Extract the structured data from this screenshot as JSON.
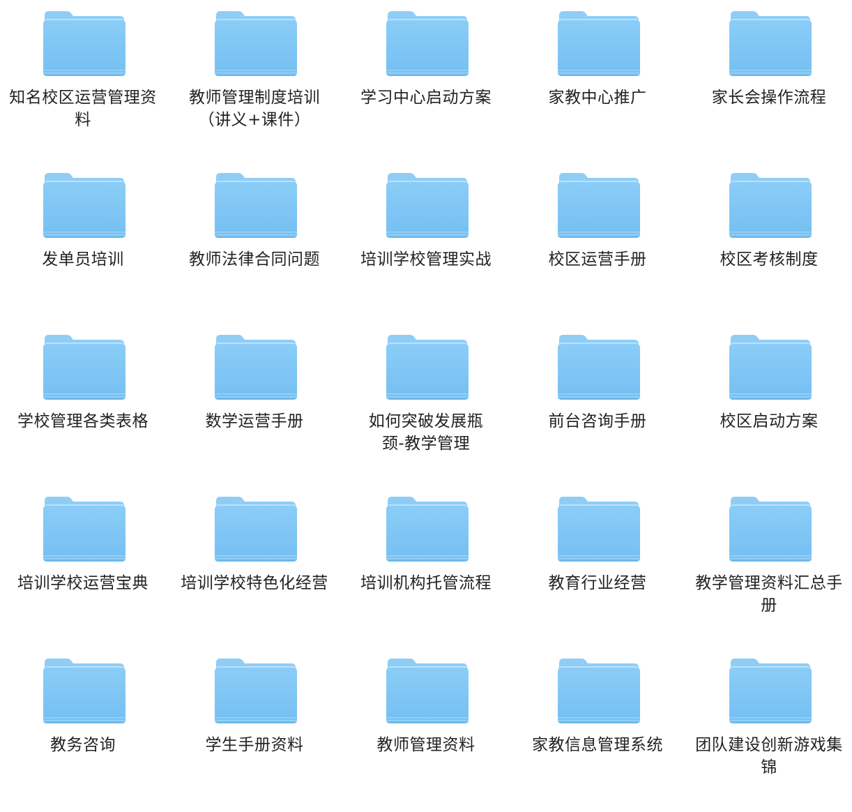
{
  "window": {
    "view": "icon-grid"
  },
  "folder_icon": {
    "name": "folder-icon",
    "tab_color": "#8fcdf7",
    "body_top_color": "#8bcdf7",
    "body_bottom_color": "#74bff2",
    "edge_color": "#62ace0"
  },
  "folders": [
    {
      "label": "知名校区运营管理资料"
    },
    {
      "label": "教师管理制度培训（讲义+课件）"
    },
    {
      "label": "学习中心启动方案"
    },
    {
      "label": "家教中心推广"
    },
    {
      "label": "家长会操作流程"
    },
    {
      "label": "发单员培训"
    },
    {
      "label": "教师法律合同问题"
    },
    {
      "label": "培训学校管理实战"
    },
    {
      "label": "校区运营手册"
    },
    {
      "label": "校区考核制度"
    },
    {
      "label": "学校管理各类表格"
    },
    {
      "label": "数学运营手册"
    },
    {
      "label": "如何突破发展瓶颈-教学管理"
    },
    {
      "label": "前台咨询手册"
    },
    {
      "label": "校区启动方案"
    },
    {
      "label": "培训学校运营宝典"
    },
    {
      "label": "培训学校特色化经营"
    },
    {
      "label": "培训机构托管流程"
    },
    {
      "label": "教育行业经营"
    },
    {
      "label": "教学管理资料汇总手册"
    },
    {
      "label": "教务咨询"
    },
    {
      "label": "学生手册资料"
    },
    {
      "label": "教师管理资料"
    },
    {
      "label": "家教信息管理系统"
    },
    {
      "label": "团队建设创新游戏集锦"
    }
  ]
}
